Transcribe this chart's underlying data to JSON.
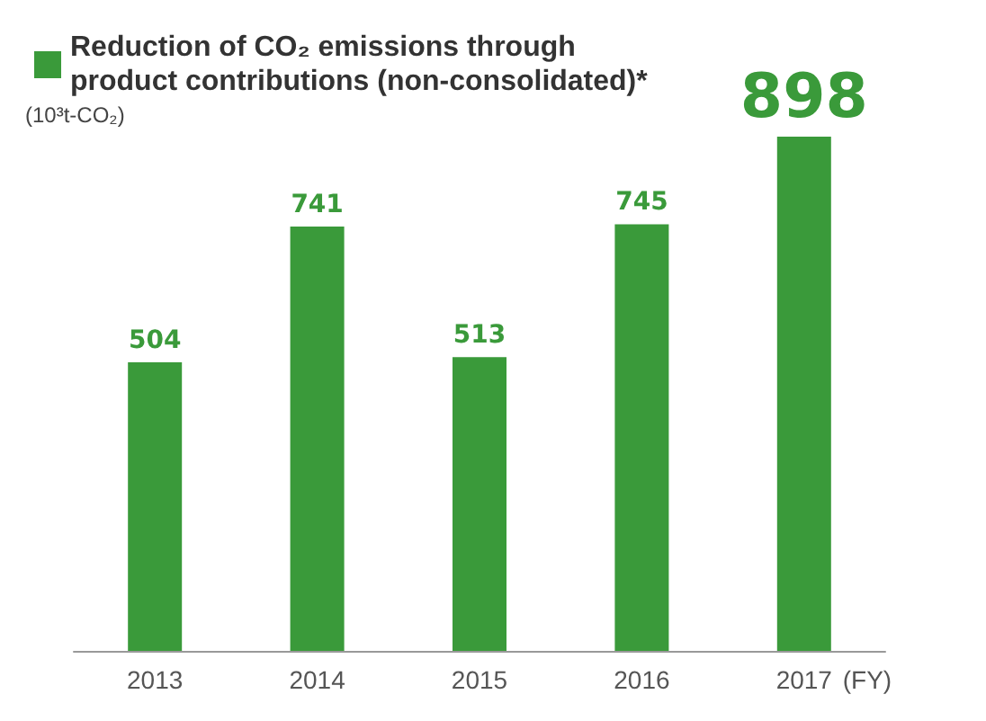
{
  "chart_data": {
    "type": "bar",
    "ylabel": "(10³t-CO₂)",
    "xlabel": "(FY)",
    "categories": [
      "2013",
      "2014",
      "2015",
      "2016",
      "2017"
    ],
    "series": [
      {
        "name": "Reduction of CO₂ emissions through product contributions (non-consolidated)*",
        "color": "#3a9a3a",
        "values": [
          504,
          741,
          513,
          745,
          898
        ]
      }
    ],
    "data_labels": true,
    "legend": "top left",
    "grid": false
  }
}
